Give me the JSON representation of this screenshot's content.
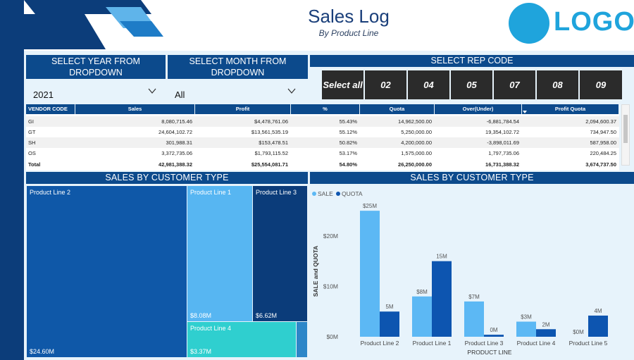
{
  "header": {
    "title": "Sales Log",
    "subtitle": "By Product Line",
    "logo_text": "LOGO"
  },
  "filters": {
    "year": {
      "label": "SELECT YEAR FROM DROPDOWN",
      "value": "2021"
    },
    "month": {
      "label": "SELECT MONTH FROM DROPDOWN",
      "value": "All"
    },
    "rep": {
      "label": "SELECT REP CODE",
      "buttons": [
        "Select all",
        "02",
        "04",
        "05",
        "07",
        "08",
        "09"
      ]
    }
  },
  "table": {
    "columns": [
      "VENDOR CODE",
      "Sales",
      "Profit",
      "%",
      "Quota",
      "Over(Under)",
      "Profit Quota"
    ],
    "rows": [
      [
        "GI",
        "8,080,715.46",
        "$4,478,761.06",
        "55.43%",
        "14,962,500.00",
        "-6,881,784.54",
        "2,094,600.37"
      ],
      [
        "GT",
        "24,604,102.72",
        "$13,561,535.19",
        "55.12%",
        "5,250,000.00",
        "19,354,102.72",
        "734,947.50"
      ],
      [
        "SH",
        "301,988.31",
        "$153,478.51",
        "50.82%",
        "4,200,000.00",
        "-3,898,011.69",
        "587,958.00"
      ],
      [
        "OS",
        "3,372,735.06",
        "$1,793,115.52",
        "53.17%",
        "1,575,000.00",
        "1,797,735.06",
        "220,484.25"
      ]
    ],
    "total": [
      "Total",
      "42,981,388.32",
      "$25,554,081.71",
      "54.80%",
      "26,250,000.00",
      "16,731,388.32",
      "3,674,737.50"
    ]
  },
  "treemap": {
    "title": "SALES BY CUSTOMER TYPE",
    "tiles": [
      {
        "label": "Product Line 2",
        "value": "$24.60M",
        "color": "#0f58a8"
      },
      {
        "label": "Product Line 1",
        "value": "$8.08M",
        "color": "#57b6f2"
      },
      {
        "label": "Product Line 3",
        "value": "$6.62M",
        "color": "#0b3c7a"
      },
      {
        "label": "Product Line 4",
        "value": "$3.37M",
        "color": "#2fcfcf"
      },
      {
        "label": "",
        "value": "",
        "color": "#2d86c8"
      }
    ]
  },
  "bar_section": {
    "title": "SALES BY CUSTOMER TYPE"
  },
  "chart_data": {
    "type": "bar",
    "categories": [
      "Product Line 2",
      "Product Line 1",
      "Product Line 3",
      "Product Line 4",
      "Product Line 5"
    ],
    "series": [
      {
        "name": "SALE",
        "color": "#5cb8f4",
        "values": [
          25,
          8,
          7,
          3,
          0
        ],
        "labels": [
          "$25M",
          "$8M",
          "$7M",
          "$3M",
          "$0M"
        ]
      },
      {
        "name": "QUOTA",
        "color": "#0d55b0",
        "values": [
          5,
          15,
          0.4,
          1.5,
          4.2
        ],
        "labels": [
          "5M",
          "15M",
          "0M",
          "2M",
          "4M"
        ]
      }
    ],
    "xlabel": "PRODUCT LINE",
    "ylabel": "SALE and QUOTA",
    "ylim": [
      0,
      26
    ],
    "yticks": [
      0,
      10,
      20
    ],
    "ytick_labels": [
      "$0M",
      "$10M",
      "$20M"
    ],
    "legend_position": "top-left",
    "grid": false
  }
}
